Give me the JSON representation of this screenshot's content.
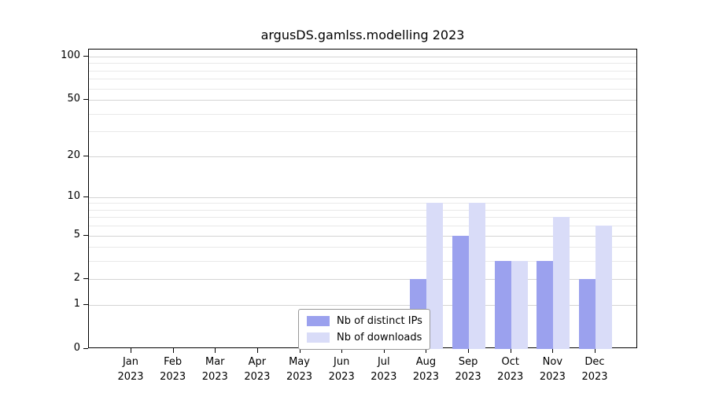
{
  "chart_data": {
    "type": "bar",
    "title": "argusDS.gamlss.modelling 2023",
    "y_scale": "log1p",
    "grid": true,
    "categories": [
      "Jan",
      "Feb",
      "Mar",
      "Apr",
      "May",
      "Jun",
      "Jul",
      "Aug",
      "Sep",
      "Oct",
      "Nov",
      "Dec"
    ],
    "year_label": "2023",
    "series": [
      {
        "key": "distinct-ips",
        "name": "Nb of distinct IPs",
        "color": "#9ba1ee",
        "values": [
          0,
          0,
          0,
          0,
          0,
          0,
          0,
          2,
          5,
          3,
          3,
          2
        ]
      },
      {
        "key": "downloads",
        "name": "Nb of downloads",
        "color": "#d9dcf8",
        "values": [
          0,
          0,
          0,
          0,
          0,
          0,
          0,
          9,
          9,
          3,
          7,
          6
        ]
      }
    ],
    "y_ticks": [
      0,
      1,
      2,
      5,
      10,
      20,
      50,
      100
    ],
    "y_minor_gridlines": [
      3,
      4,
      6,
      7,
      8,
      9,
      30,
      40,
      60,
      70,
      80,
      90
    ],
    "ylim": [
      0,
      112
    ],
    "legend_position": "inside-bottom-center"
  },
  "colors": {
    "major_gridline": "#d4d4d4",
    "minor_gridline": "#e9e9e9",
    "axis": "#000000",
    "background": "#ffffff"
  }
}
